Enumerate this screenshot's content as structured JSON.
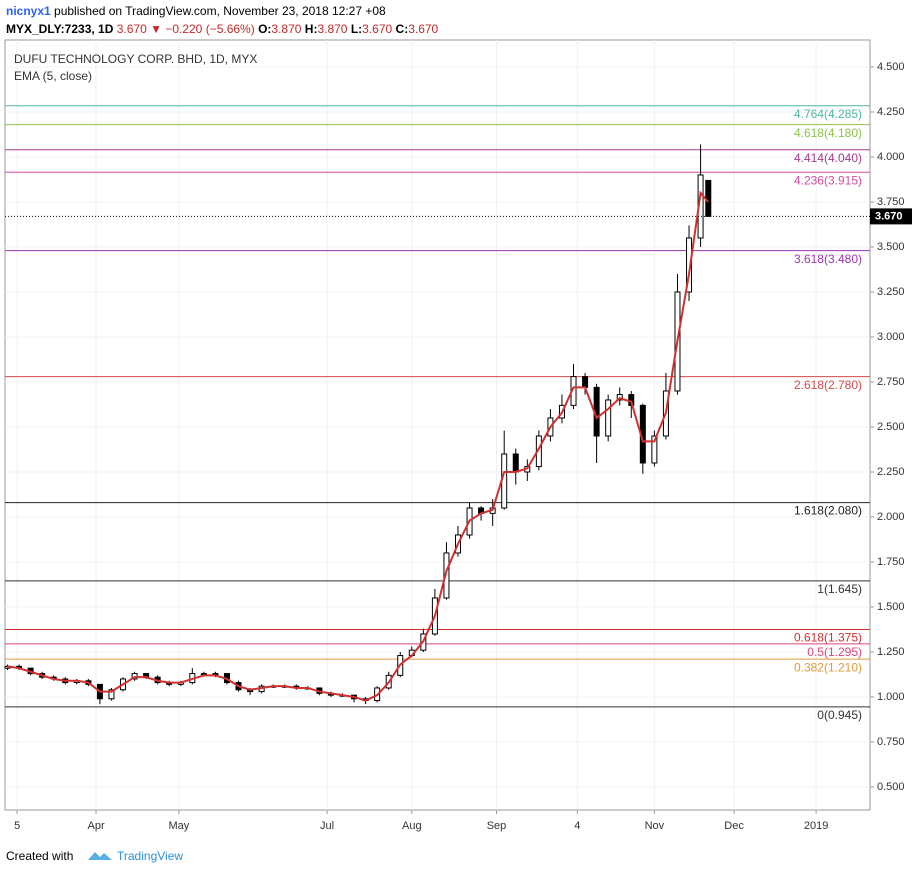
{
  "header": {
    "user": "nicnyx1",
    "published": " published on TradingView.com, November 23, 2018 12:27 +08",
    "symbol": "MYX_DLY:7233, 1D",
    "last": " 3.670 ",
    "arrow": "▼",
    "change": " −0.220 (−5.66%) ",
    "o_label": "O:",
    "o": "3.870 ",
    "h_label": "H:",
    "h": "3.870 ",
    "l_label": "L:",
    "l": "3.670 ",
    "c_label": "C:",
    "c": "3.670"
  },
  "footer": {
    "created": "Created with",
    "brand": "TradingView"
  },
  "chart_data": {
    "type": "candlestick",
    "title": "DUFU TECHNOLOGY CORP. BHD, 1D, MYX",
    "x": [
      0,
      3,
      6,
      9,
      12,
      15,
      18,
      21,
      24,
      27,
      30,
      33,
      36,
      39,
      42,
      45,
      48,
      51,
      54,
      57,
      60,
      63,
      66,
      69,
      72,
      75,
      78,
      81,
      84,
      87,
      90,
      93,
      96,
      99,
      102,
      105,
      108,
      111,
      114,
      117,
      120,
      123,
      126,
      129,
      132,
      135,
      138,
      141,
      144,
      147,
      150,
      153,
      156,
      159,
      162,
      165,
      168,
      171,
      174,
      177,
      180,
      182
    ],
    "open": [
      1.16,
      1.17,
      1.16,
      1.13,
      1.11,
      1.1,
      1.08,
      1.09,
      1.07,
      0.99,
      1.04,
      1.1,
      1.13,
      1.11,
      1.08,
      1.07,
      1.08,
      1.13,
      1.13,
      1.13,
      1.08,
      1.04,
      1.03,
      1.06,
      1.06,
      1.06,
      1.05,
      1.05,
      1.02,
      1.01,
      1.01,
      0.99,
      0.98,
      1.05,
      1.12,
      1.23,
      1.26,
      1.35,
      1.55,
      1.8,
      1.9,
      2.05,
      2.02,
      2.05,
      2.35,
      2.25,
      2.28,
      2.45,
      2.55,
      2.62,
      2.78,
      2.72,
      2.45,
      2.65,
      2.68,
      2.62,
      2.3,
      2.45,
      2.7,
      3.25,
      3.55,
      3.87
    ],
    "high": [
      1.18,
      1.18,
      1.16,
      1.14,
      1.12,
      1.11,
      1.1,
      1.1,
      1.07,
      1.05,
      1.11,
      1.14,
      1.13,
      1.12,
      1.09,
      1.09,
      1.16,
      1.14,
      1.14,
      1.13,
      1.09,
      1.05,
      1.07,
      1.07,
      1.07,
      1.07,
      1.06,
      1.05,
      1.03,
      1.02,
      1.01,
      1.0,
      1.06,
      1.14,
      1.25,
      1.28,
      1.38,
      1.6,
      1.86,
      1.95,
      2.08,
      2.06,
      2.1,
      2.48,
      2.38,
      2.32,
      2.48,
      2.6,
      2.68,
      2.85,
      2.8,
      2.74,
      2.68,
      2.72,
      2.7,
      2.63,
      2.48,
      2.8,
      3.35,
      3.62,
      4.07,
      3.87
    ],
    "low": [
      1.15,
      1.15,
      1.12,
      1.1,
      1.09,
      1.07,
      1.07,
      1.06,
      0.96,
      0.98,
      1.03,
      1.09,
      1.1,
      1.07,
      1.06,
      1.06,
      1.07,
      1.12,
      1.11,
      1.07,
      1.03,
      1.01,
      1.02,
      1.05,
      1.05,
      1.04,
      1.04,
      1.01,
      1.0,
      1.0,
      0.97,
      0.96,
      0.97,
      1.04,
      1.11,
      1.22,
      1.25,
      1.34,
      1.54,
      1.78,
      1.88,
      1.98,
      1.95,
      2.04,
      2.18,
      2.2,
      2.26,
      2.42,
      2.52,
      2.6,
      2.68,
      2.3,
      2.42,
      2.62,
      2.55,
      2.24,
      2.28,
      2.43,
      2.68,
      3.2,
      3.5,
      3.67
    ],
    "close": [
      1.17,
      1.16,
      1.13,
      1.11,
      1.1,
      1.08,
      1.09,
      1.07,
      0.99,
      1.04,
      1.1,
      1.13,
      1.11,
      1.08,
      1.07,
      1.08,
      1.13,
      1.13,
      1.13,
      1.08,
      1.04,
      1.03,
      1.06,
      1.06,
      1.06,
      1.05,
      1.05,
      1.02,
      1.01,
      1.01,
      0.99,
      0.98,
      1.05,
      1.12,
      1.23,
      1.26,
      1.35,
      1.55,
      1.8,
      1.9,
      2.05,
      2.02,
      2.05,
      2.35,
      2.25,
      2.28,
      2.45,
      2.55,
      2.62,
      2.78,
      2.72,
      2.45,
      2.65,
      2.68,
      2.62,
      2.3,
      2.45,
      2.7,
      3.25,
      3.55,
      3.9,
      3.67
    ],
    "up_color": "#ffffff",
    "down_color": "#000000",
    "indicator": {
      "name": "EMA (5, close)",
      "color": "#d32f2f",
      "values": [
        1.17,
        1.16,
        1.14,
        1.12,
        1.1,
        1.09,
        1.09,
        1.08,
        1.03,
        1.03,
        1.07,
        1.11,
        1.11,
        1.09,
        1.08,
        1.08,
        1.1,
        1.12,
        1.12,
        1.1,
        1.06,
        1.04,
        1.05,
        1.06,
        1.06,
        1.05,
        1.05,
        1.03,
        1.02,
        1.01,
        1.0,
        0.98,
        1.01,
        1.08,
        1.18,
        1.23,
        1.31,
        1.45,
        1.7,
        1.85,
        1.98,
        2.02,
        2.04,
        2.25,
        2.25,
        2.27,
        2.38,
        2.5,
        2.58,
        2.72,
        2.72,
        2.55,
        2.6,
        2.66,
        2.64,
        2.42,
        2.42,
        2.58,
        2.98,
        3.35,
        3.8,
        3.75
      ]
    },
    "last_price": {
      "value": 3.67,
      "label": "3.670"
    },
    "fib_levels": [
      {
        "label": "4.764(4.285)",
        "value": 4.285,
        "color": "#4db6a0"
      },
      {
        "label": "4.618(4.180)",
        "value": 4.18,
        "color": "#8bc34a"
      },
      {
        "label": "4.414(4.040)",
        "value": 4.04,
        "color": "#a43a8c"
      },
      {
        "label": "4.236(3.915)",
        "value": 3.915,
        "color": "#d64aa0"
      },
      {
        "label": "3.618(3.480)",
        "value": 3.48,
        "color": "#9c35b5"
      },
      {
        "label": "2.618(2.780)",
        "value": 2.78,
        "color": "#d84a4a"
      },
      {
        "label": "1.618(2.080)",
        "value": 2.08,
        "color": "#222222"
      },
      {
        "label": "1(1.645)",
        "value": 1.645,
        "color": "#333333"
      },
      {
        "label": "0.618(1.375)",
        "value": 1.375,
        "color": "#d32f2f"
      },
      {
        "label": "0.5(1.295)",
        "value": 1.295,
        "color": "#e0457b"
      },
      {
        "label": "0.382(1.210)",
        "value": 1.21,
        "color": "#e09a3c"
      },
      {
        "label": "0(0.945)",
        "value": 0.945,
        "color": "#333333"
      }
    ],
    "ylim": [
      0.372,
      4.65
    ],
    "yticks": [
      {
        "value": 0.5,
        "label": "0.500"
      },
      {
        "value": 0.75,
        "label": "0.750"
      },
      {
        "value": 1,
        "label": "1.000"
      },
      {
        "value": 1.25,
        "label": "1.250"
      },
      {
        "value": 1.5,
        "label": "1.500"
      },
      {
        "value": 1.75,
        "label": "1.750"
      },
      {
        "value": 2,
        "label": "2.000"
      },
      {
        "value": 2.25,
        "label": "2.250"
      },
      {
        "value": 2.5,
        "label": "2.500"
      },
      {
        "value": 2.75,
        "label": "2.750"
      },
      {
        "value": 3,
        "label": "3.000"
      },
      {
        "value": 3.25,
        "label": "3.250"
      },
      {
        "value": 3.5,
        "label": "3.500"
      },
      {
        "value": 3.75,
        "label": "3.750"
      },
      {
        "value": 4,
        "label": "4.000"
      },
      {
        "value": 4.25,
        "label": "4.250"
      },
      {
        "value": 4.5,
        "label": "4.500"
      }
    ],
    "xlim": [
      -0.65,
      224
    ],
    "xticks": [
      {
        "value": 2.5,
        "label": "5"
      },
      {
        "value": 23,
        "label": "Apr"
      },
      {
        "value": 44.5,
        "label": "May"
      },
      {
        "value": 83,
        "label": "Jul"
      },
      {
        "value": 105,
        "label": "Aug"
      },
      {
        "value": 127,
        "label": "Sep"
      },
      {
        "value": 148,
        "label": "4"
      },
      {
        "value": 168,
        "label": "Nov"
      },
      {
        "value": 188.7,
        "label": "Dec"
      },
      {
        "value": 210,
        "label": "2019"
      }
    ],
    "grid": true
  }
}
